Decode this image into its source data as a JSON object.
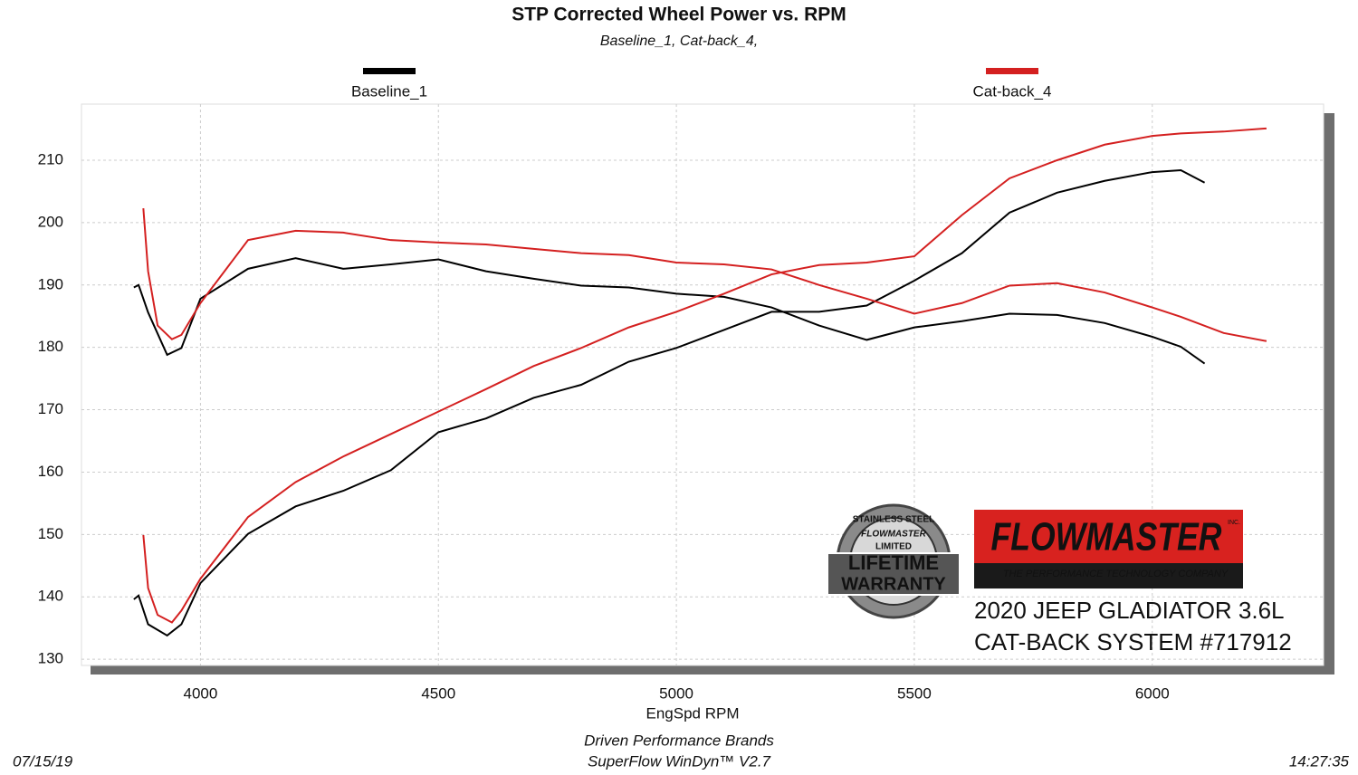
{
  "chart_data": {
    "type": "line",
    "title": "STP Corrected Wheel Power vs. RPM",
    "subtitle": "Baseline_1, Cat-back_4,",
    "x_label": "EngSpd  RPM",
    "footer": [
      "Driven Performance Brands",
      "SuperFlow WinDyn™ V2.7"
    ],
    "date": "07/15/19",
    "time": "14:27:35",
    "xlim": [
      3750,
      6360
    ],
    "ylim": [
      129,
      219
    ],
    "xticks": [
      4000,
      4500,
      5000,
      5500,
      6000
    ],
    "yticks": [
      130,
      140,
      150,
      160,
      170,
      180,
      190,
      200,
      210
    ],
    "grid": true,
    "series": [
      {
        "name": "Baseline_1",
        "color": "#000000",
        "x": [
          3860,
          3870,
          3890,
          3930,
          3960,
          4000,
          4100,
          4200,
          4300,
          4400,
          4500,
          4600,
          4700,
          4800,
          4900,
          5000,
          5100,
          5200,
          5300,
          5400,
          5500,
          5600,
          5700,
          5800,
          5900,
          6000,
          6060,
          6110
        ],
        "curves": [
          [
            139.6,
            140.2,
            135.6,
            133.8,
            135.6,
            142.2,
            150.1,
            154.5,
            157,
            160.3,
            166.4,
            168.6,
            171.9,
            174,
            177.7,
            179.9,
            182.8,
            185.7,
            185.7,
            186.7,
            190.7,
            195.1,
            201.6,
            204.8,
            206.7,
            208.1,
            208.4,
            206.4
          ],
          [
            189.6,
            190,
            185.6,
            178.8,
            179.9,
            187.8,
            192.6,
            194.3,
            192.6,
            193.3,
            194.1,
            192.2,
            191,
            189.9,
            189.6,
            188.6,
            188.1,
            186.4,
            183.5,
            181.2,
            183.2,
            184.2,
            185.4,
            185.2,
            183.9,
            181.7,
            180.1,
            177.4
          ]
        ]
      },
      {
        "name": "Cat-back_4",
        "color": "#d42020",
        "x": [
          3880,
          3890,
          3910,
          3940,
          3960,
          4000,
          4100,
          4200,
          4300,
          4400,
          4500,
          4600,
          4700,
          4800,
          4900,
          5000,
          5100,
          5200,
          5300,
          5400,
          5500,
          5600,
          5700,
          5800,
          5900,
          6000,
          6060,
          6150,
          6240
        ],
        "curves": [
          [
            149.9,
            141.4,
            137.1,
            135.9,
            137.8,
            142.9,
            152.8,
            158.4,
            162.5,
            166.1,
            169.7,
            173.3,
            177,
            179.9,
            183.2,
            185.7,
            188.6,
            191.7,
            193.2,
            193.6,
            194.6,
            201.2,
            207.1,
            210,
            212.5,
            213.9,
            214.3,
            214.6,
            215.1
          ],
          [
            202.3,
            192.2,
            183.5,
            181.3,
            182,
            187.1,
            197.2,
            198.7,
            198.4,
            197.2,
            196.8,
            196.5,
            195.8,
            195.1,
            194.8,
            193.6,
            193.3,
            192.5,
            190,
            187.8,
            185.4,
            187.1,
            189.9,
            190.3,
            188.8,
            186.4,
            184.9,
            182.3,
            181
          ]
        ]
      }
    ]
  },
  "logo": {
    "brand": "FLOWMASTER",
    "brand_suffix": "INC.",
    "tagline": "THE PERFORMANCE TECHNOLOGY COMPANY",
    "caption": [
      "2020 JEEP GLADIATOR 3.6L",
      "CAT-BACK SYSTEM #717912"
    ]
  },
  "badge": {
    "ring": "STAINLESS STEEL",
    "brand": "FLOWMASTER",
    "limited": "LIMITED",
    "line1": "LIFETIME",
    "line2": "WARRANTY"
  }
}
